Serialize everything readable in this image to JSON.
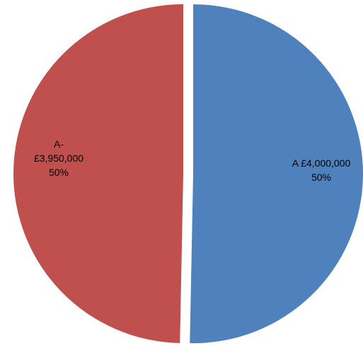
{
  "chart_data": {
    "type": "pie",
    "exploded": true,
    "slices": [
      {
        "category": "A",
        "value": 4000000,
        "value_label": "£4,000,000",
        "percent_label": "50%",
        "label_lines": [
          "A £4,000,000",
          "50%"
        ],
        "color": "#4F81BD"
      },
      {
        "category": "A-",
        "value": 3950000,
        "value_label": "£3,950,000",
        "percent_label": "50%",
        "label_lines": [
          "A-",
          "£3,950,000",
          "50%"
        ],
        "color": "#C0504D"
      }
    ]
  }
}
